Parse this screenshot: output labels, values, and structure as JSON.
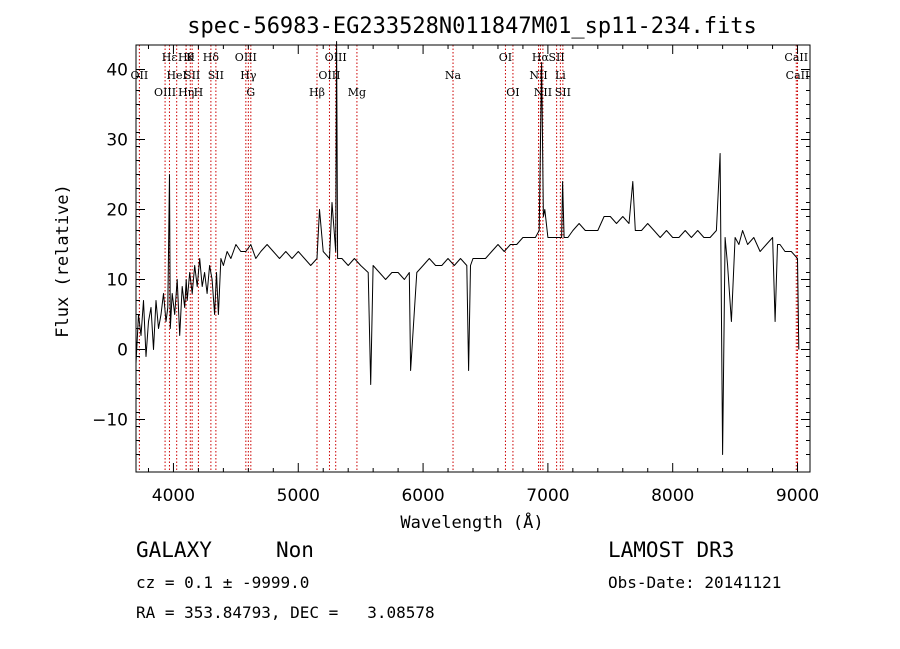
{
  "chart_data": {
    "type": "line",
    "title": "spec-56983-EG233528N011847M01_sp11-234.fits",
    "xlabel": "Wavelength (Å)",
    "ylabel": "Flux (relative)",
    "xlim": [
      3700,
      9100
    ],
    "ylim": [
      -17.5,
      43.5
    ],
    "xticks": [
      4000,
      5000,
      6000,
      7000,
      8000,
      9000
    ],
    "yticks": [
      -10,
      0,
      10,
      20,
      30,
      40
    ],
    "grid": false,
    "line_color": "#000000",
    "marker_color": "#cc0000",
    "series": [
      {
        "x": [
          3700,
          3720,
          3740,
          3760,
          3780,
          3800,
          3820,
          3840,
          3860,
          3880,
          3900,
          3920,
          3940,
          3955,
          3968,
          3975,
          3990,
          4010,
          4030,
          4050,
          4070,
          4090,
          4102,
          4110,
          4130,
          4150,
          4170,
          4190,
          4210,
          4230,
          4250,
          4270,
          4290,
          4310,
          4330,
          4345,
          4360,
          4380,
          4400,
          4430,
          4460,
          4500,
          4540,
          4580,
          4620,
          4660,
          4700,
          4750,
          4800,
          4850,
          4900,
          4950,
          5000,
          5050,
          5100,
          5150,
          5170,
          5200,
          5250,
          5270,
          5300,
          5307,
          5315,
          5350,
          5400,
          5450,
          5500,
          5560,
          5580,
          5600,
          5650,
          5700,
          5750,
          5800,
          5850,
          5890,
          5900,
          5950,
          6000,
          6050,
          6100,
          6150,
          6200,
          6250,
          6300,
          6350,
          6365,
          6380,
          6400,
          6450,
          6500,
          6550,
          6600,
          6650,
          6700,
          6750,
          6800,
          6850,
          6900,
          6930,
          6950,
          6964,
          6975,
          7000,
          7050,
          7090,
          7110,
          7118,
          7130,
          7160,
          7200,
          7250,
          7300,
          7350,
          7400,
          7450,
          7500,
          7550,
          7600,
          7650,
          7680,
          7700,
          7750,
          7800,
          7850,
          7900,
          7950,
          8000,
          8050,
          8100,
          8150,
          8200,
          8250,
          8300,
          8350,
          8380,
          8400,
          8420,
          8440,
          8470,
          8500,
          8530,
          8560,
          8600,
          8650,
          8700,
          8750,
          8800,
          8820,
          8840,
          8860,
          8900,
          8950,
          9000,
          9010
        ],
        "y": [
          -2,
          5,
          2,
          7,
          -1,
          4,
          6,
          0,
          7,
          3,
          5,
          8,
          4,
          6,
          25,
          3,
          8,
          5,
          10,
          2,
          9,
          6,
          10,
          7,
          11,
          8,
          12,
          9,
          13,
          9,
          11,
          8,
          12,
          10,
          5,
          11,
          5,
          13,
          12,
          14,
          13,
          15,
          14,
          14,
          15,
          13,
          14,
          15,
          14,
          13,
          14,
          13,
          14,
          13,
          12,
          13,
          20,
          14,
          13,
          21,
          14,
          44,
          13,
          13,
          12,
          13,
          12,
          11,
          -5,
          12,
          11,
          10,
          11,
          11,
          10,
          11,
          -3,
          11,
          12,
          13,
          12,
          12,
          13,
          12,
          13,
          12,
          -3,
          12,
          13,
          13,
          13,
          14,
          15,
          14,
          15,
          15,
          16,
          16,
          16,
          17,
          41,
          19,
          20,
          16,
          16,
          16,
          16,
          24,
          16,
          16,
          17,
          18,
          17,
          17,
          17,
          19,
          19,
          18,
          19,
          18,
          24,
          17,
          17,
          18,
          17,
          16,
          17,
          16,
          16,
          17,
          16,
          17,
          16,
          16,
          17,
          28,
          -15,
          16,
          12,
          4,
          16,
          15,
          17,
          15,
          16,
          14,
          15,
          16,
          4,
          15,
          15,
          14,
          14,
          13,
          0
        ]
      }
    ],
    "line_markers": [
      {
        "wl": 3727,
        "label": "OII",
        "row": 1
      },
      {
        "wl": 3933,
        "label": "OIII",
        "row": 2
      },
      {
        "wl": 3968,
        "label": "Hε",
        "row": 0
      },
      {
        "wl": 4026,
        "label": "HeI",
        "row": 1
      },
      {
        "wl": 4101,
        "label": "Hθ",
        "row": 0
      },
      {
        "wl": 4102,
        "label": "Hη",
        "row": 2
      },
      {
        "wl": 4135,
        "label": "K",
        "row": 0
      },
      {
        "wl": 4150,
        "label": "SII",
        "row": 1
      },
      {
        "wl": 4200,
        "label": "H",
        "row": 2
      },
      {
        "wl": 4300,
        "label": "Hδ",
        "row": 0
      },
      {
        "wl": 4340,
        "label": "SII",
        "row": 1
      },
      {
        "wl": 4580,
        "label": "OIII",
        "row": 0
      },
      {
        "wl": 4600,
        "label": "Hγ",
        "row": 1
      },
      {
        "wl": 4620,
        "label": "G",
        "row": 2
      },
      {
        "wl": 5150,
        "label": "Hβ",
        "row": 2
      },
      {
        "wl": 5250,
        "label": "OIII",
        "row": 1
      },
      {
        "wl": 5300,
        "label": "OIII",
        "row": 0
      },
      {
        "wl": 5470,
        "label": "Mg",
        "row": 2
      },
      {
        "wl": 6240,
        "label": "Na",
        "row": 1
      },
      {
        "wl": 6660,
        "label": "OI",
        "row": 0
      },
      {
        "wl": 6720,
        "label": "OI",
        "row": 2
      },
      {
        "wl": 6925,
        "label": "NII",
        "row": 1
      },
      {
        "wl": 6940,
        "label": "Hα",
        "row": 0
      },
      {
        "wl": 6960,
        "label": "NII",
        "row": 2
      },
      {
        "wl": 7070,
        "label": "SII",
        "row": 0
      },
      {
        "wl": 7100,
        "label": "Li",
        "row": 1
      },
      {
        "wl": 7120,
        "label": "SII",
        "row": 2
      },
      {
        "wl": 8990,
        "label": "CaII",
        "row": 0
      },
      {
        "wl": 9000,
        "label": "CaII",
        "row": 1
      }
    ]
  },
  "info": {
    "class_label": "GALAXY",
    "subclass_label": "Non",
    "survey_label": "LAMOST DR3",
    "cz_line": "cz = 0.1 ± -9999.0",
    "obs_date_line": "Obs-Date: 20141121",
    "coords_line": "RA = 353.84793, DEC =   3.08578"
  }
}
